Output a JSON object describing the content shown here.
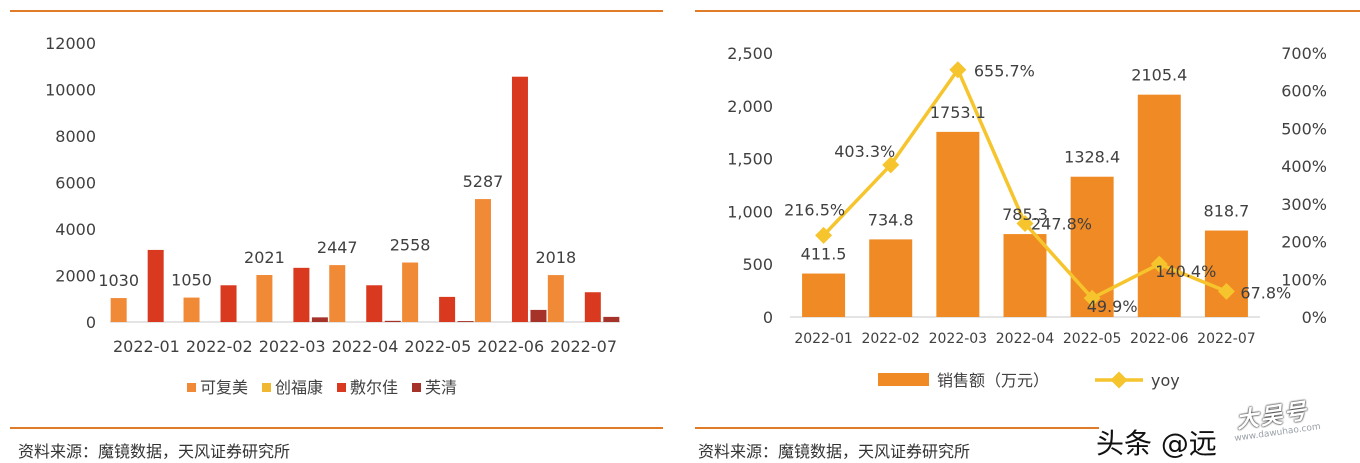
{
  "left": {
    "source": "资料来源：魔镜数据，天风证券研究所"
  },
  "right": {
    "source": "资料来源：魔镜数据，天风证券研究所"
  },
  "watermark": {
    "text": "头条 @远",
    "stamp": "大吴号",
    "url": "www.dawuhao.com"
  },
  "colors": {
    "accent_rule": "#E07B2A"
  },
  "chart_data": [
    {
      "type": "bar",
      "categories": [
        "2022-01",
        "2022-02",
        "2022-03",
        "2022-04",
        "2022-05",
        "2022-06",
        "2022-07"
      ],
      "ylim": [
        0,
        12000
      ],
      "yticks": [
        0,
        2000,
        4000,
        6000,
        8000,
        10000,
        12000
      ],
      "ytick_labels": [
        "0",
        "2000",
        "4000",
        "6000",
        "8000",
        "10000",
        "12000"
      ],
      "grid": false,
      "legend_position": "bottom",
      "series": [
        {
          "name": "可复美",
          "color": "#F08A36",
          "values": [
            1030,
            1050,
            2021,
            2447,
            2558,
            5287,
            2018
          ],
          "data_labels": [
            "1030",
            "1050",
            "2021",
            "2447",
            "2558",
            "5287",
            "2018"
          ]
        },
        {
          "name": "创福康",
          "color": "#F2B731",
          "values": [
            0,
            0,
            0,
            0,
            0,
            0,
            0
          ]
        },
        {
          "name": "敷尔佳",
          "color": "#D9391E",
          "values": [
            3100,
            1580,
            2330,
            1580,
            1080,
            10550,
            1280
          ]
        },
        {
          "name": "芙清",
          "color": "#A5332A",
          "values": [
            0,
            0,
            200,
            50,
            40,
            520,
            220
          ]
        }
      ]
    },
    {
      "type": "bar",
      "categories": [
        "2022-01",
        "2022-02",
        "2022-03",
        "2022-04",
        "2022-05",
        "2022-06",
        "2022-07"
      ],
      "ylim": [
        0,
        2500
      ],
      "yticks": [
        0,
        500,
        1000,
        1500,
        2000,
        2500
      ],
      "ytick_labels": [
        "0",
        "500",
        "1,000",
        "1,500",
        "2,000",
        "2,500"
      ],
      "y2lim": [
        0,
        700
      ],
      "y2ticks": [
        0,
        100,
        200,
        300,
        400,
        500,
        600,
        700
      ],
      "y2tick_labels": [
        "0%",
        "100%",
        "200%",
        "300%",
        "400%",
        "500%",
        "600%",
        "700%"
      ],
      "grid": false,
      "legend_position": "bottom",
      "series": [
        {
          "name": "销售额（万元）",
          "type": "bar",
          "axis": "left",
          "color": "#F08A24",
          "values": [
            411.5,
            734.8,
            1753.1,
            785.3,
            1328.4,
            2105.4,
            818.7
          ],
          "data_labels": [
            "411.5",
            "734.8",
            "1753.1",
            "785.3",
            "1328.4",
            "2105.4",
            "818.7"
          ]
        },
        {
          "name": "yoy",
          "type": "line",
          "axis": "right",
          "color": "#F6C42C",
          "values": [
            216.5,
            403.3,
            655.7,
            247.8,
            49.9,
            140.4,
            67.8
          ],
          "data_labels": [
            "216.5%",
            "403.3%",
            "655.7%",
            "247.8%",
            "49.9%",
            "140.4%",
            "67.8%"
          ]
        }
      ]
    }
  ]
}
